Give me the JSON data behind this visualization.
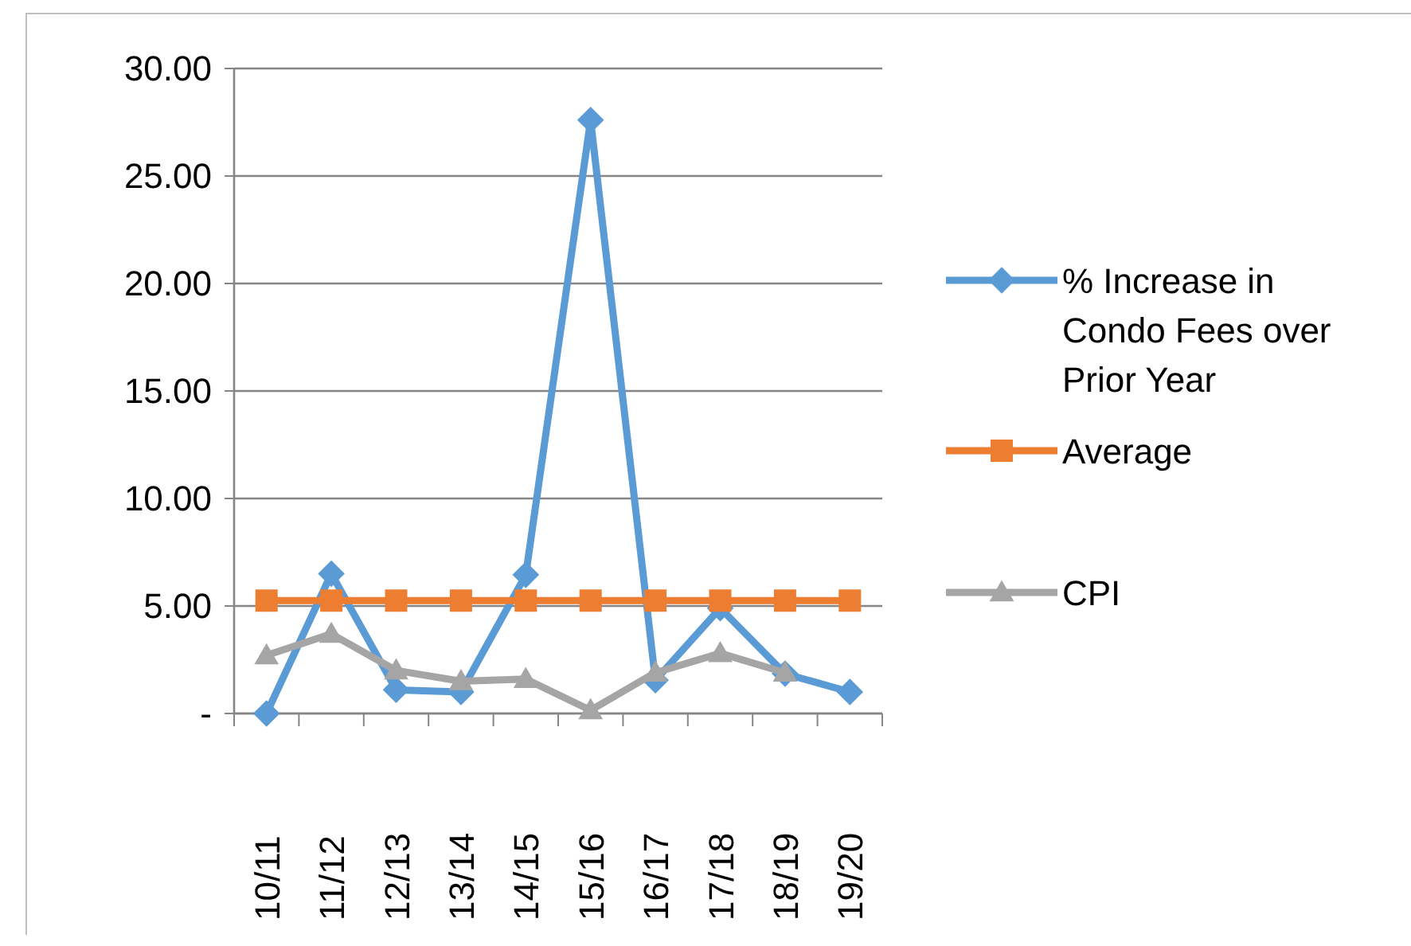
{
  "chart_data": {
    "type": "line",
    "categories": [
      "10/11",
      "11/12",
      "12/13",
      "13/14",
      "14/15",
      "15/16",
      "16/17",
      "17/18",
      "18/19",
      "19/20"
    ],
    "series": [
      {
        "name": " % Increase in Condo Fees over Prior Year",
        "color": "#5b9bd5",
        "marker": "diamond",
        "values": [
          0,
          6.5,
          1.1,
          1.0,
          6.45,
          27.6,
          1.55,
          4.9,
          1.85,
          1.0
        ]
      },
      {
        "name": "Average",
        "color": "#ed7d31",
        "marker": "square",
        "values": [
          5.25,
          5.25,
          5.25,
          5.25,
          5.25,
          5.25,
          5.25,
          5.25,
          5.25,
          5.25
        ]
      },
      {
        "name": "CPI",
        "color": "#a5a5a5",
        "marker": "triangle",
        "values": [
          2.7,
          3.7,
          2.0,
          1.5,
          1.6,
          0.15,
          1.9,
          2.8,
          1.9,
          null
        ]
      }
    ],
    "ylim": [
      0,
      30
    ],
    "yticks": [
      {
        "value": 0,
        "label": "-"
      },
      {
        "value": 5,
        "label": "5.00"
      },
      {
        "value": 10,
        "label": "10.00"
      },
      {
        "value": 15,
        "label": "15.00"
      },
      {
        "value": 20,
        "label": "20.00"
      },
      {
        "value": 25,
        "label": "25.00"
      },
      {
        "value": 30,
        "label": "30.00"
      }
    ],
    "grid": "y",
    "legend": "right"
  }
}
